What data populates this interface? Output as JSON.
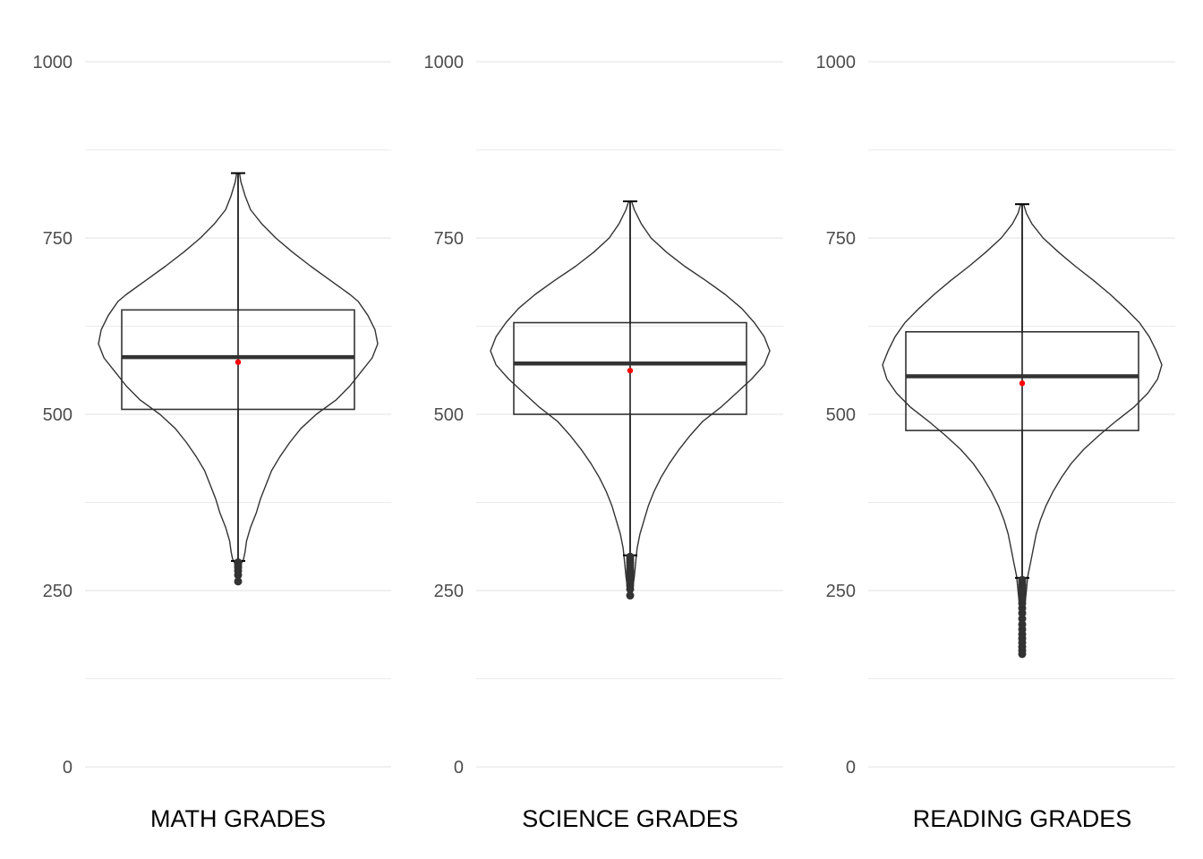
{
  "chart_data": {
    "type": "violin-boxplot",
    "ylim": [
      0,
      1000
    ],
    "yticks": [
      0,
      250,
      500,
      750,
      1000
    ],
    "grid": true,
    "colors": {
      "grid": "#ebebeb",
      "outline": "#333333",
      "whisker": "#000000",
      "mean_point": "#ff0000",
      "outlier": "#333333"
    },
    "panels": [
      {
        "label": "MATH GRADES",
        "min": 292,
        "q1": 507,
        "median": 581,
        "q3": 648,
        "max": 842,
        "mean": 574,
        "outliers": [
          263,
          272,
          278,
          283,
          287,
          290
        ],
        "violin_lo": 287,
        "violin_hi": 842,
        "density": [
          [
            842,
            0.01
          ],
          [
            830,
            0.02
          ],
          [
            810,
            0.05
          ],
          [
            790,
            0.09
          ],
          [
            770,
            0.17
          ],
          [
            750,
            0.27
          ],
          [
            730,
            0.39
          ],
          [
            710,
            0.52
          ],
          [
            690,
            0.66
          ],
          [
            670,
            0.8
          ],
          [
            660,
            0.86
          ],
          [
            640,
            0.93
          ],
          [
            620,
            0.98
          ],
          [
            600,
            1.0
          ],
          [
            580,
            0.96
          ],
          [
            560,
            0.88
          ],
          [
            540,
            0.8
          ],
          [
            520,
            0.7
          ],
          [
            500,
            0.56
          ],
          [
            480,
            0.45
          ],
          [
            460,
            0.37
          ],
          [
            440,
            0.3
          ],
          [
            420,
            0.24
          ],
          [
            400,
            0.2
          ],
          [
            380,
            0.16
          ],
          [
            360,
            0.13
          ],
          [
            340,
            0.09
          ],
          [
            320,
            0.06
          ],
          [
            305,
            0.05
          ],
          [
            295,
            0.04
          ],
          [
            287,
            0.02
          ]
        ]
      },
      {
        "label": "SCIENCE GRADES",
        "min": 300,
        "q1": 500,
        "median": 572,
        "q3": 630,
        "max": 802,
        "mean": 562,
        "outliers": [
          243,
          252,
          257,
          261,
          265,
          270,
          274,
          278,
          282,
          286,
          290,
          294,
          298
        ],
        "violin_lo": 243,
        "violin_hi": 802,
        "density": [
          [
            802,
            0.01
          ],
          [
            790,
            0.03
          ],
          [
            770,
            0.08
          ],
          [
            750,
            0.15
          ],
          [
            730,
            0.26
          ],
          [
            710,
            0.39
          ],
          [
            690,
            0.54
          ],
          [
            670,
            0.68
          ],
          [
            650,
            0.8
          ],
          [
            630,
            0.89
          ],
          [
            610,
            0.96
          ],
          [
            590,
            1.0
          ],
          [
            570,
            0.96
          ],
          [
            550,
            0.87
          ],
          [
            530,
            0.76
          ],
          [
            510,
            0.65
          ],
          [
            490,
            0.52
          ],
          [
            470,
            0.43
          ],
          [
            450,
            0.35
          ],
          [
            430,
            0.28
          ],
          [
            410,
            0.22
          ],
          [
            390,
            0.17
          ],
          [
            370,
            0.13
          ],
          [
            350,
            0.1
          ],
          [
            330,
            0.07
          ],
          [
            310,
            0.05
          ],
          [
            290,
            0.04
          ],
          [
            270,
            0.03
          ],
          [
            255,
            0.02
          ],
          [
            243,
            0.01
          ]
        ]
      },
      {
        "label": "READING GRADES",
        "min": 268,
        "q1": 477,
        "median": 554,
        "q3": 617,
        "max": 798,
        "mean": 544,
        "outliers": [
          160,
          165,
          170,
          176,
          182,
          188,
          195,
          202,
          210,
          218,
          225,
          232,
          238,
          244,
          249,
          254,
          258,
          262,
          265
        ],
        "violin_lo": 160,
        "violin_hi": 798,
        "density": [
          [
            798,
            0.01
          ],
          [
            785,
            0.03
          ],
          [
            770,
            0.07
          ],
          [
            750,
            0.15
          ],
          [
            730,
            0.26
          ],
          [
            710,
            0.38
          ],
          [
            690,
            0.51
          ],
          [
            670,
            0.63
          ],
          [
            650,
            0.74
          ],
          [
            630,
            0.84
          ],
          [
            610,
            0.91
          ],
          [
            590,
            0.96
          ],
          [
            570,
            1.0
          ],
          [
            550,
            0.97
          ],
          [
            530,
            0.9
          ],
          [
            510,
            0.8
          ],
          [
            490,
            0.67
          ],
          [
            470,
            0.55
          ],
          [
            450,
            0.44
          ],
          [
            430,
            0.35
          ],
          [
            410,
            0.28
          ],
          [
            390,
            0.22
          ],
          [
            370,
            0.17
          ],
          [
            350,
            0.13
          ],
          [
            330,
            0.1
          ],
          [
            310,
            0.08
          ],
          [
            290,
            0.06
          ],
          [
            270,
            0.04
          ],
          [
            250,
            0.03
          ],
          [
            230,
            0.02
          ],
          [
            200,
            0.01
          ],
          [
            160,
            0.005
          ]
        ]
      }
    ]
  }
}
